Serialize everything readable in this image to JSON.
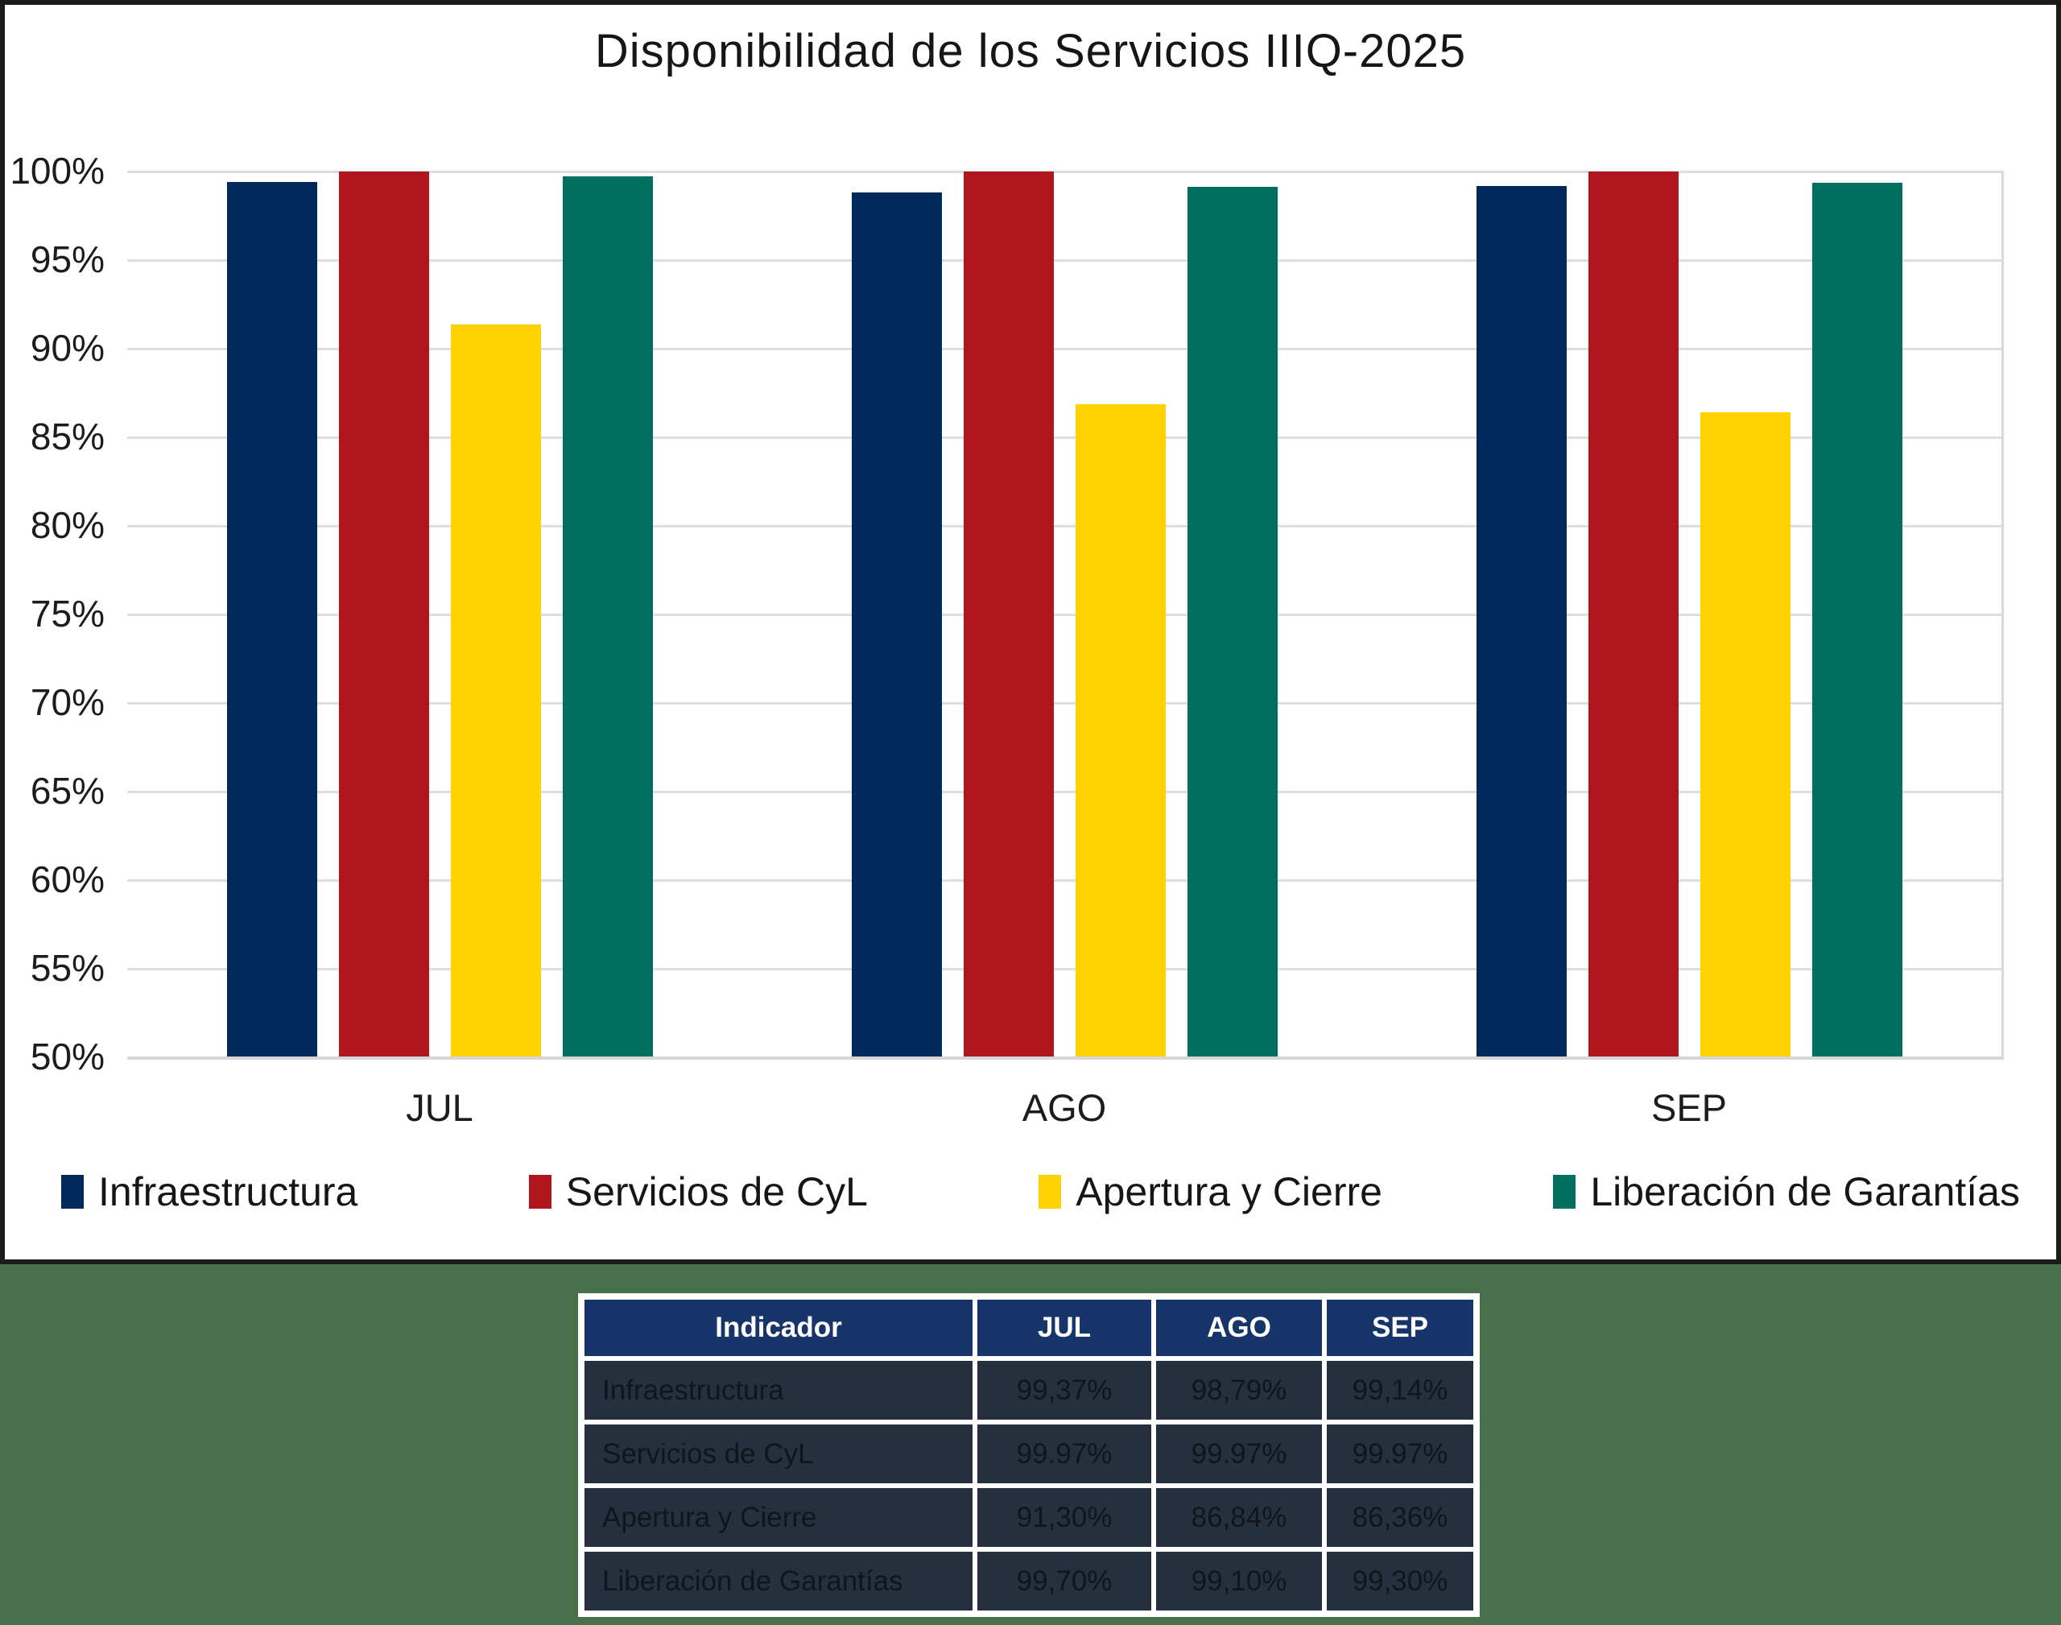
{
  "chart_data": {
    "type": "bar",
    "title": "Disponibilidad de los Servicios IIIQ-2025",
    "categories": [
      "JUL",
      "AGO",
      "SEP"
    ],
    "series": [
      {
        "name": "Infraestructura",
        "color": "#002a5c",
        "values": [
          99.37,
          98.79,
          99.14
        ]
      },
      {
        "name": "Servicios de CyL",
        "color": "#b1161f",
        "values": [
          99.97,
          99.97,
          99.97
        ]
      },
      {
        "name": "Apertura y Cierre",
        "color": "#ffd100",
        "values": [
          91.3,
          86.84,
          86.36
        ]
      },
      {
        "name": "Liberación de Garantías",
        "color": "#006f60",
        "values": [
          99.7,
          99.1,
          99.3
        ]
      }
    ],
    "ylim": [
      50,
      100
    ],
    "y_tick_step": 5,
    "y_tick_labels": [
      "100%",
      "95%",
      "90%",
      "85%",
      "80%",
      "75%",
      "70%",
      "65%",
      "60%",
      "55%",
      "50%"
    ],
    "grid": "horizontal",
    "legend_position": "bottom"
  },
  "table": {
    "headers": [
      "Indicador",
      "JUL",
      "AGO",
      "SEP"
    ],
    "rows": [
      [
        "Infraestructura",
        "99,37%",
        "98,79%",
        "99,14%"
      ],
      [
        "Servicios de CyL",
        "99.97%",
        "99.97%",
        "99.97%"
      ],
      [
        "Apertura y Cierre",
        "91,30%",
        "86,84%",
        "86,36%"
      ],
      [
        "Liberación de Garantías",
        "99,70%",
        "99,10%",
        "99,30%"
      ]
    ]
  },
  "colors": {
    "panel_background": "#ffffff",
    "panel_border": "#1b1b1b",
    "page_background": "#47704b",
    "gridline": "#dedede",
    "table_header_bg": "#17356b",
    "table_row_bg": "#25303e",
    "table_header_text": "#ffffff"
  }
}
